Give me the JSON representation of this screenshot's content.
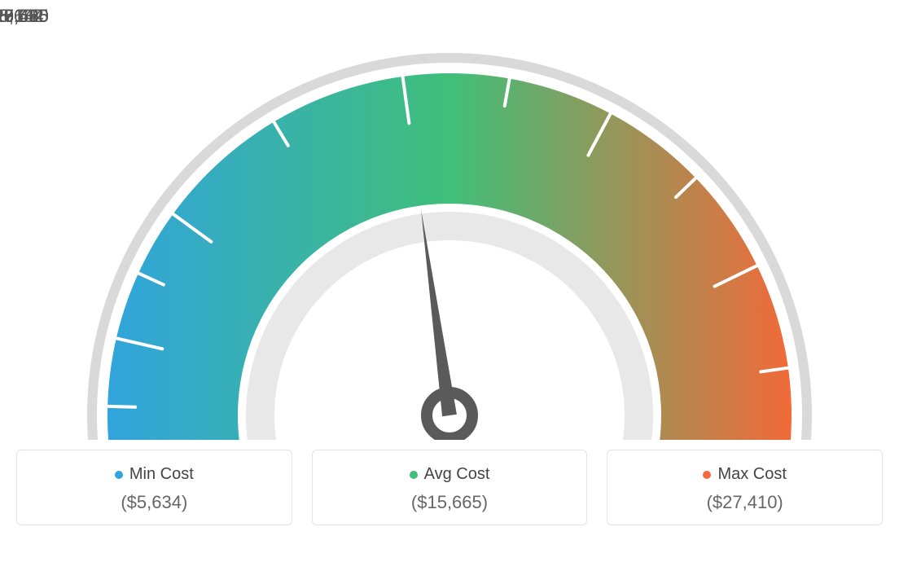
{
  "gauge": {
    "type": "gauge",
    "min_value": 5634,
    "max_value": 27410,
    "avg_value": 15665,
    "needle_value": 15665,
    "start_angle_deg": 190,
    "end_angle_deg": -10,
    "ticks": [
      {
        "value": 5634,
        "label": "$5,634"
      },
      {
        "value": 8142,
        "label": "$8,142"
      },
      {
        "value": 10650,
        "label": "$10,650"
      },
      {
        "value": 15665,
        "label": "$15,665"
      },
      {
        "value": 19580,
        "label": "$19,580"
      },
      {
        "value": 23495,
        "label": "$23,495"
      },
      {
        "value": 27410,
        "label": "$27,410"
      }
    ],
    "minor_ticks_between": 1,
    "arc_colors": {
      "start": "#31a4dd",
      "mid": "#3fbf79",
      "end": "#f26a39"
    },
    "outer_arc_color": "#d9d9d9",
    "inner_arc_color": "#e8e8e8",
    "tick_stroke": "#ffffff",
    "tick_stroke_width": 4,
    "needle_color": "#5a5a5a",
    "needle_ring_color": "#5a5a5a",
    "background_color": "#ffffff",
    "label_color": "#555555",
    "label_fontsize": 22,
    "arc_outer_radius": 420,
    "arc_inner_radius": 260,
    "outline_outer_radius": 445,
    "outline_inner_radius": 433,
    "inner_ring_outer_radius": 250,
    "inner_ring_inner_radius": 215
  },
  "cards": {
    "min": {
      "title": "Min Cost",
      "value": "($5,634)",
      "dot_color": "#31a4dd"
    },
    "avg": {
      "title": "Avg Cost",
      "value": "($15,665)",
      "dot_color": "#3fbf79"
    },
    "max": {
      "title": "Max Cost",
      "value": "($27,410)",
      "dot_color": "#f26a39"
    }
  },
  "card_style": {
    "border_color": "#e3e3e3",
    "border_radius": 6,
    "title_color": "#444444",
    "title_fontsize": 20,
    "value_color": "#666666",
    "value_fontsize": 22,
    "dot_size": 10
  }
}
